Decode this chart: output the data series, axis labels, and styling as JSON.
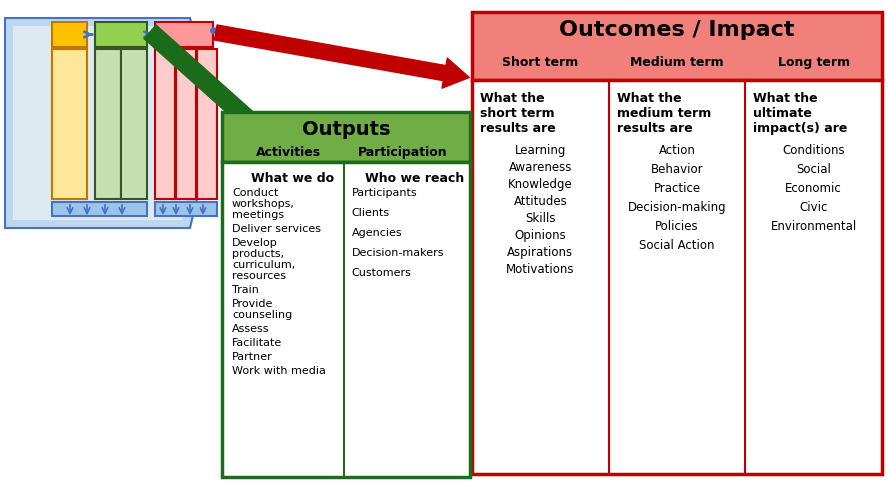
{
  "bg_color": "#ffffff",
  "outputs_box": {
    "title": "Outputs",
    "subtitle_left": "Activities",
    "subtitle_right": "Participation",
    "header_color": "#70ad47",
    "border_color": "#1e6b1e",
    "left_col_header": "What we do",
    "left_col_items": [
      "Conduct\nworkshops,\nmeetings",
      "Deliver services",
      "Develop\nproducts,\ncurriculum,\nresources",
      "Train",
      "Provide\ncounseling",
      "Assess",
      "Facilitate",
      "Partner",
      "Work with media"
    ],
    "right_col_header": "Who we reach",
    "right_col_items": [
      "Participants",
      "Clients",
      "Agencies",
      "Decision-makers",
      "Customers"
    ]
  },
  "outcomes_box": {
    "title": "Outcomes / Impact",
    "header_color": "#f1807a",
    "border_color": "#c00000",
    "col1_header": "Short term",
    "col2_header": "Medium term",
    "col3_header": "Long term",
    "col1_subheader": "What the\nshort term\nresults are",
    "col2_subheader": "What the\nmedium term\nresults are",
    "col3_subheader": "What the\nultimate\nimpact(s) are",
    "col1_items": [
      "Learning",
      "Awareness",
      "Knowledge",
      "Attitudes",
      "Skills",
      "Opinions",
      "Aspirations",
      "Motivations"
    ],
    "col2_items": [
      "Action",
      "Behavior",
      "Practice",
      "Decision-making",
      "Policies",
      "Social Action"
    ],
    "col3_items": [
      "Conditions",
      "Social",
      "Economic",
      "Civic",
      "Environmental"
    ]
  },
  "diagram": {
    "blue_dark": "#4472c4",
    "blue_mid": "#9dc3e6",
    "blue_light": "#bdd7ee",
    "blue_lighter": "#deeaf1",
    "yellow_dark": "#c07800",
    "yellow_fill": "#ffc000",
    "yellow_light": "#ffe699",
    "green_dark": "#375623",
    "green_fill": "#92d050",
    "green_light": "#c6e0b4",
    "red_dark": "#c00000",
    "red_fill": "#ff9999",
    "red_light": "#ffcccc",
    "green_arrow": "#1a6b1a",
    "red_arrow": "#c00000"
  }
}
